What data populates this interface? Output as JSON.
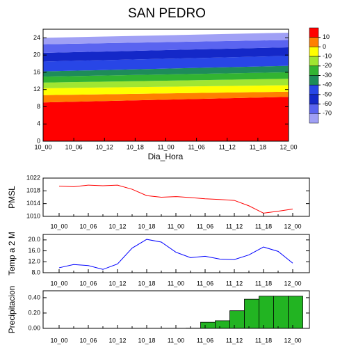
{
  "chart_data": [
    {
      "type": "contour",
      "title": "SAN PEDRO",
      "x_label": "Dia_Hora",
      "categories": [
        "10_00",
        "10_06",
        "10_12",
        "10_18",
        "11_00",
        "11_06",
        "11_12",
        "11_18",
        "12_00"
      ],
      "ylim": [
        0,
        26
      ],
      "yticks": [
        0,
        4,
        8,
        12,
        16,
        20,
        24
      ],
      "levels": [
        10,
        0,
        -10,
        -20,
        -30,
        -40,
        -50,
        -60,
        -70
      ],
      "colors": [
        "#ff0000",
        "#ff8000",
        "#ffff00",
        "#a0e632",
        "#32b432",
        "#1e8c5a",
        "#2846e6",
        "#1428c8",
        "#5a64f0",
        "#a0a0f5"
      ],
      "band_tops": [
        [
          9,
          10.3
        ],
        [
          10.7,
          11.5
        ],
        [
          12.3,
          13
        ],
        [
          13.6,
          14.5
        ],
        [
          15,
          16
        ],
        [
          16.2,
          17.5
        ],
        [
          18.5,
          19.8
        ],
        [
          20.5,
          21.8
        ],
        [
          22.5,
          23.5
        ],
        [
          24,
          25.2
        ]
      ]
    },
    {
      "type": "line",
      "y_label": "PMSL",
      "color": "#ff0000",
      "categories": [
        "10_00",
        null,
        "10_06",
        null,
        "10_12",
        null,
        "10_18",
        null,
        "11_00",
        null,
        "11_06",
        null,
        "11_12",
        null,
        "11_18",
        null,
        "12_00"
      ],
      "values": [
        1019.5,
        1019.3,
        1019.8,
        1019.6,
        1019.8,
        1018.5,
        1016.5,
        1016,
        1016.2,
        1015.9,
        1015.5,
        1015.3,
        1015,
        1013.3,
        1011,
        1011.6,
        1012.3
      ],
      "ylim": [
        1010,
        1022
      ],
      "yticks": [
        1010,
        1014,
        1018,
        1022
      ]
    },
    {
      "type": "line",
      "y_label": "Temp a 2 M",
      "color": "#0000ff",
      "categories": [
        "10_00",
        null,
        "10_06",
        null,
        "10_12",
        null,
        "10_18",
        null,
        "11_00",
        null,
        "11_06",
        null,
        "11_12",
        null,
        "11_18",
        null,
        "12_00"
      ],
      "values": [
        9.8,
        11,
        10.6,
        9.2,
        11.2,
        17,
        20.2,
        19.2,
        15.5,
        13.5,
        14,
        13,
        12.8,
        14.5,
        17.4,
        15.8,
        11.5
      ],
      "ylim": [
        8,
        22
      ],
      "yticks": [
        {
          "value": 8,
          "label": "8.0"
        },
        {
          "value": 12,
          "label": "12.0"
        },
        {
          "value": 16,
          "label": "16.0"
        },
        {
          "value": 20,
          "label": "20.0"
        }
      ]
    },
    {
      "type": "bar",
      "y_label": "Precipitacion",
      "color": "#22b422",
      "categories": [
        "10_00",
        null,
        "10_06",
        null,
        "10_12",
        null,
        "10_18",
        null,
        "11_00",
        null,
        "11_06",
        null,
        "11_12",
        null,
        "11_18",
        null,
        "12_00"
      ],
      "values": [
        0,
        0,
        0,
        0,
        0,
        0,
        0,
        0,
        0,
        0.002,
        0.08,
        0.1,
        0.23,
        0.38,
        0.42,
        0.42,
        0.42
      ],
      "ylim": [
        0,
        0.49
      ],
      "yticks": [
        {
          "value": 0,
          "label": "0.00"
        },
        {
          "value": 0.2,
          "label": "0.20"
        },
        {
          "value": 0.4,
          "label": "0.40"
        }
      ]
    }
  ]
}
